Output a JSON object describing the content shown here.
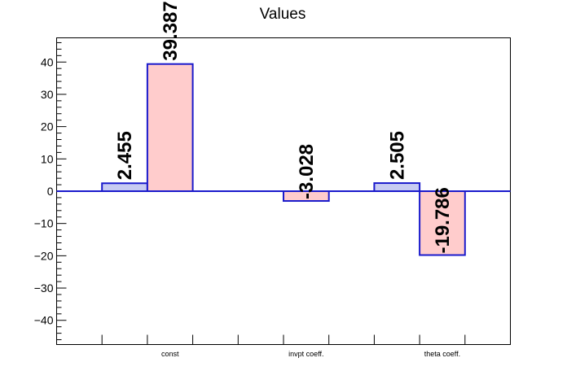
{
  "chart_data": {
    "type": "bar",
    "title": "Values",
    "xlabel": "",
    "ylabel": "",
    "ylim": [
      -47.5,
      47.5
    ],
    "yticks": [
      -40,
      -30,
      -20,
      -10,
      0,
      10,
      20,
      30,
      40
    ],
    "ytick_labels": [
      "−40",
      "−30",
      "−20",
      "−10",
      "0",
      "10",
      "20",
      "30",
      "40"
    ],
    "categories": [
      "const",
      "invpt coeff.",
      "theta coeff."
    ],
    "grid": false,
    "legend": "none",
    "series": [
      {
        "values": [
          2.455,
          null,
          2.505
        ],
        "labels": [
          "2.455",
          "",
          "2.505"
        ],
        "fill": "#c8ccf2",
        "stroke": "#1a1acc"
      },
      {
        "values": [
          39.387,
          -3.028,
          -19.786
        ],
        "labels": [
          "39.387",
          "-3.028",
          "-19.786"
        ],
        "fill": "#ffcccc",
        "stroke": "#1a1acc"
      }
    ]
  }
}
